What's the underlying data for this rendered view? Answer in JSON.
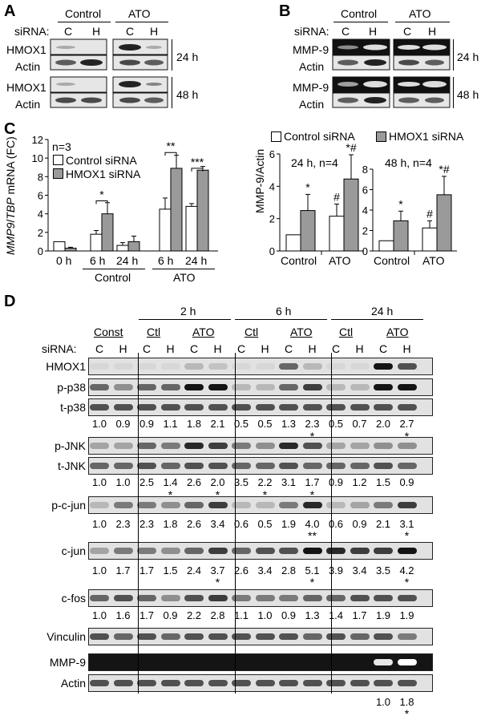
{
  "panels": {
    "a": "A",
    "b": "B",
    "c": "C",
    "d": "D"
  },
  "panelA": {
    "groups": [
      "Control",
      "ATO"
    ],
    "sirna_label": "siRNA:",
    "lanes": [
      "C",
      "H",
      "C",
      "H"
    ],
    "rows": [
      "HMOX1",
      "Actin",
      "HMOX1",
      "Actin"
    ],
    "times": [
      "24 h",
      "48 h"
    ]
  },
  "panelB": {
    "groups": [
      "Control",
      "ATO"
    ],
    "sirna_label": "siRNA:",
    "lanes": [
      "C",
      "H",
      "C",
      "H"
    ],
    "rows": [
      "MMP-9",
      "Actin",
      "MMP-9",
      "Actin"
    ],
    "times": [
      "24 h",
      "48 h"
    ]
  },
  "panelC": {
    "n_label": "n=3",
    "legend": [
      "Control siRNA",
      "HMOX1 siRNA"
    ],
    "ylabel_italic1": "MMP9",
    "ylabel_sep": "/",
    "ylabel_italic2": "TBP",
    "ylabel_rest": " mRNA (FC)",
    "x_time_labels": [
      "0 h",
      "6 h",
      "24 h",
      "6 h",
      "24 h"
    ],
    "group_labels": [
      "Control",
      "ATO"
    ],
    "sig": [
      "*",
      "**",
      "***"
    ]
  },
  "panelCR": {
    "legend": [
      "Control siRNA",
      "HMOX1 siRNA"
    ],
    "ylabel": "MMP-9/Actin",
    "left_title": "24 h, n=4",
    "right_title": "48 h, n=4",
    "x_labels": [
      "Control",
      "ATO"
    ],
    "marks": [
      "*",
      "#",
      "*#"
    ]
  },
  "chart_data": [
    {
      "type": "bar",
      "title": "",
      "ylabel": "MMP9/TBP mRNA (FC)",
      "categories": [
        "0 h",
        "6 h Control",
        "24 h Control",
        "6 h ATO",
        "24 h ATO"
      ],
      "series": [
        {
          "name": "Control siRNA",
          "values": [
            1.0,
            1.8,
            0.6,
            4.5,
            4.8
          ],
          "errors": [
            0.0,
            0.4,
            0.3,
            1.2,
            0.3
          ]
        },
        {
          "name": "HMOX1 siRNA",
          "values": [
            0.3,
            4.0,
            1.0,
            8.9,
            8.7
          ],
          "errors": [
            0.1,
            1.2,
            0.6,
            1.4,
            0.4
          ]
        }
      ],
      "ylim": [
        0,
        12
      ],
      "yticks": [
        0,
        2,
        4,
        6,
        8,
        10,
        12
      ],
      "annotations": [
        "n=3"
      ]
    },
    {
      "type": "bar",
      "title": "24 h, n=4",
      "ylabel": "MMP-9/Actin",
      "categories": [
        "Control",
        "ATO"
      ],
      "series": [
        {
          "name": "Control siRNA",
          "values": [
            1.0,
            2.15
          ],
          "errors": [
            0.0,
            0.75
          ]
        },
        {
          "name": "HMOX1 siRNA",
          "values": [
            2.5,
            4.45
          ],
          "errors": [
            1.0,
            1.5
          ]
        }
      ],
      "ylim": [
        0,
        6
      ],
      "yticks": [
        0,
        2,
        4,
        6
      ]
    },
    {
      "type": "bar",
      "title": "48 h, n=4",
      "ylabel": "MMP-9/Actin",
      "categories": [
        "Control",
        "ATO"
      ],
      "series": [
        {
          "name": "Control siRNA",
          "values": [
            1.0,
            2.25
          ],
          "errors": [
            0.0,
            0.7
          ]
        },
        {
          "name": "HMOX1 siRNA",
          "values": [
            2.95,
            5.5
          ],
          "errors": [
            0.95,
            1.8
          ]
        }
      ],
      "ylim": [
        0,
        8
      ],
      "yticks": [
        0,
        2,
        4,
        6,
        8
      ]
    }
  ],
  "panelD": {
    "times": [
      "2 h",
      "6 h",
      "24 h"
    ],
    "groups": [
      "Const",
      "Ctl",
      "ATO",
      "Ctl",
      "ATO",
      "Ctl",
      "ATO"
    ],
    "sirna_label": "siRNA:",
    "lanes": [
      "C",
      "H",
      "C",
      "H",
      "C",
      "H",
      "C",
      "H",
      "C",
      "H",
      "C",
      "H",
      "C",
      "H"
    ],
    "rows": [
      "HMOX1",
      "p-p38",
      "t-p38",
      "p-JNK",
      "t-JNK",
      "p-c-jun",
      "c-jun",
      "c-fos",
      "Vinculin",
      "MMP-9",
      "Actin"
    ],
    "quant": {
      "p38": [
        "1.0",
        "0.9",
        "0.9",
        "1.1",
        "1.8",
        "2.1",
        "0.5",
        "0.5",
        "1.3",
        "2.3",
        "0.5",
        "0.7",
        "2.0",
        "2.7"
      ],
      "jnk": [
        "1.0",
        "1.0",
        "2.5",
        "1.4",
        "2.6",
        "2.0",
        "3.5",
        "2.2",
        "3.1",
        "1.7",
        "0.9",
        "1.2",
        "1.5",
        "0.9"
      ],
      "pcjun": [
        "1.0",
        "2.3",
        "2.3",
        "1.8",
        "2.6",
        "3.4",
        "0.6",
        "0.5",
        "1.9",
        "4.0",
        "0.6",
        "0.9",
        "2.1",
        "3.1"
      ],
      "cjun": [
        "1.0",
        "1.7",
        "1.7",
        "1.5",
        "2.4",
        "3.7",
        "2.6",
        "3.4",
        "2.8",
        "5.1",
        "3.9",
        "3.4",
        "3.5",
        "4.2"
      ],
      "cfos": [
        "1.0",
        "1.6",
        "1.7",
        "0.9",
        "2.2",
        "2.8",
        "1.1",
        "1.0",
        "0.9",
        "1.3",
        "1.4",
        "1.7",
        "1.9",
        "1.9"
      ],
      "mmp9": [
        "1.0",
        "1.8"
      ]
    },
    "stars": {
      "single": "*",
      "double": "**"
    }
  }
}
